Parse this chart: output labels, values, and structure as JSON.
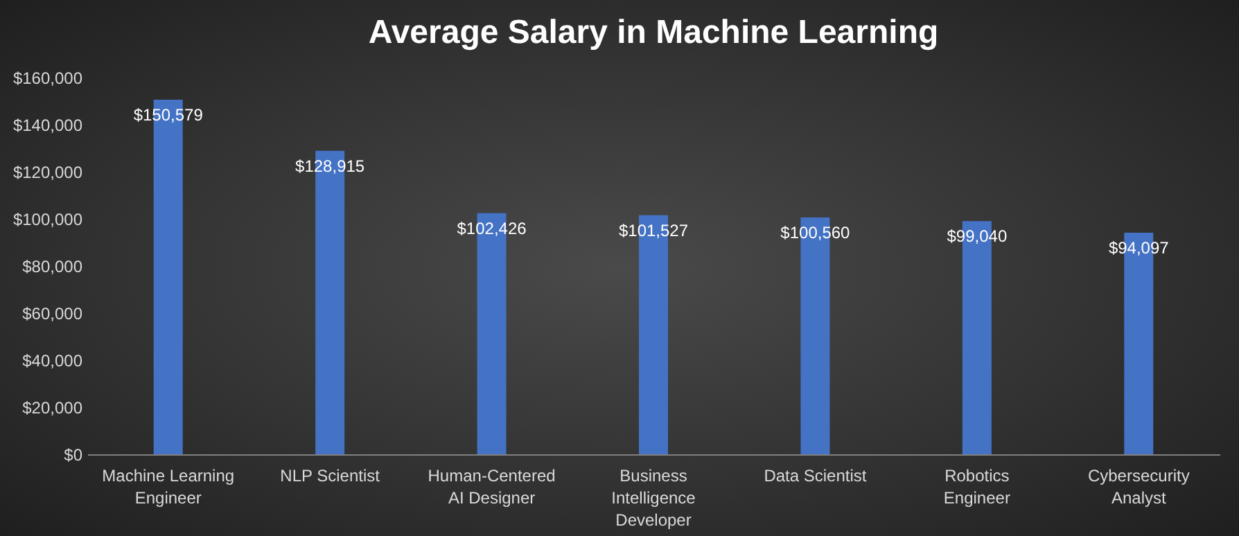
{
  "chart_data": {
    "type": "bar",
    "title": "Average Salary in Machine Learning",
    "categories": [
      "Machine Learning Engineer",
      "NLP Scientist",
      "Human-Centered AI Designer",
      "Business Intelligence Developer",
      "Data Scientist",
      "Robotics Engineer",
      "Cybersecurity Analyst"
    ],
    "values": [
      150579,
      128915,
      102426,
      101527,
      100560,
      99040,
      94097
    ],
    "value_labels": [
      "$150,579",
      "$128,915",
      "$102,426",
      "$101,527",
      "$100,560",
      "$99,040",
      "$94,097"
    ],
    "color": "#4472c4",
    "ylim": [
      0,
      160000
    ],
    "yticks": [
      {
        "value": 0,
        "label": "$0"
      },
      {
        "value": 20000,
        "label": "$20,000"
      },
      {
        "value": 40000,
        "label": "$40,000"
      },
      {
        "value": 60000,
        "label": "$60,000"
      },
      {
        "value": 80000,
        "label": "$80,000"
      },
      {
        "value": 100000,
        "label": "$100,000"
      },
      {
        "value": 120000,
        "label": "$120,000"
      },
      {
        "value": 140000,
        "label": "$140,000"
      },
      {
        "value": 160000,
        "label": "$160,000"
      }
    ],
    "grid": false
  }
}
